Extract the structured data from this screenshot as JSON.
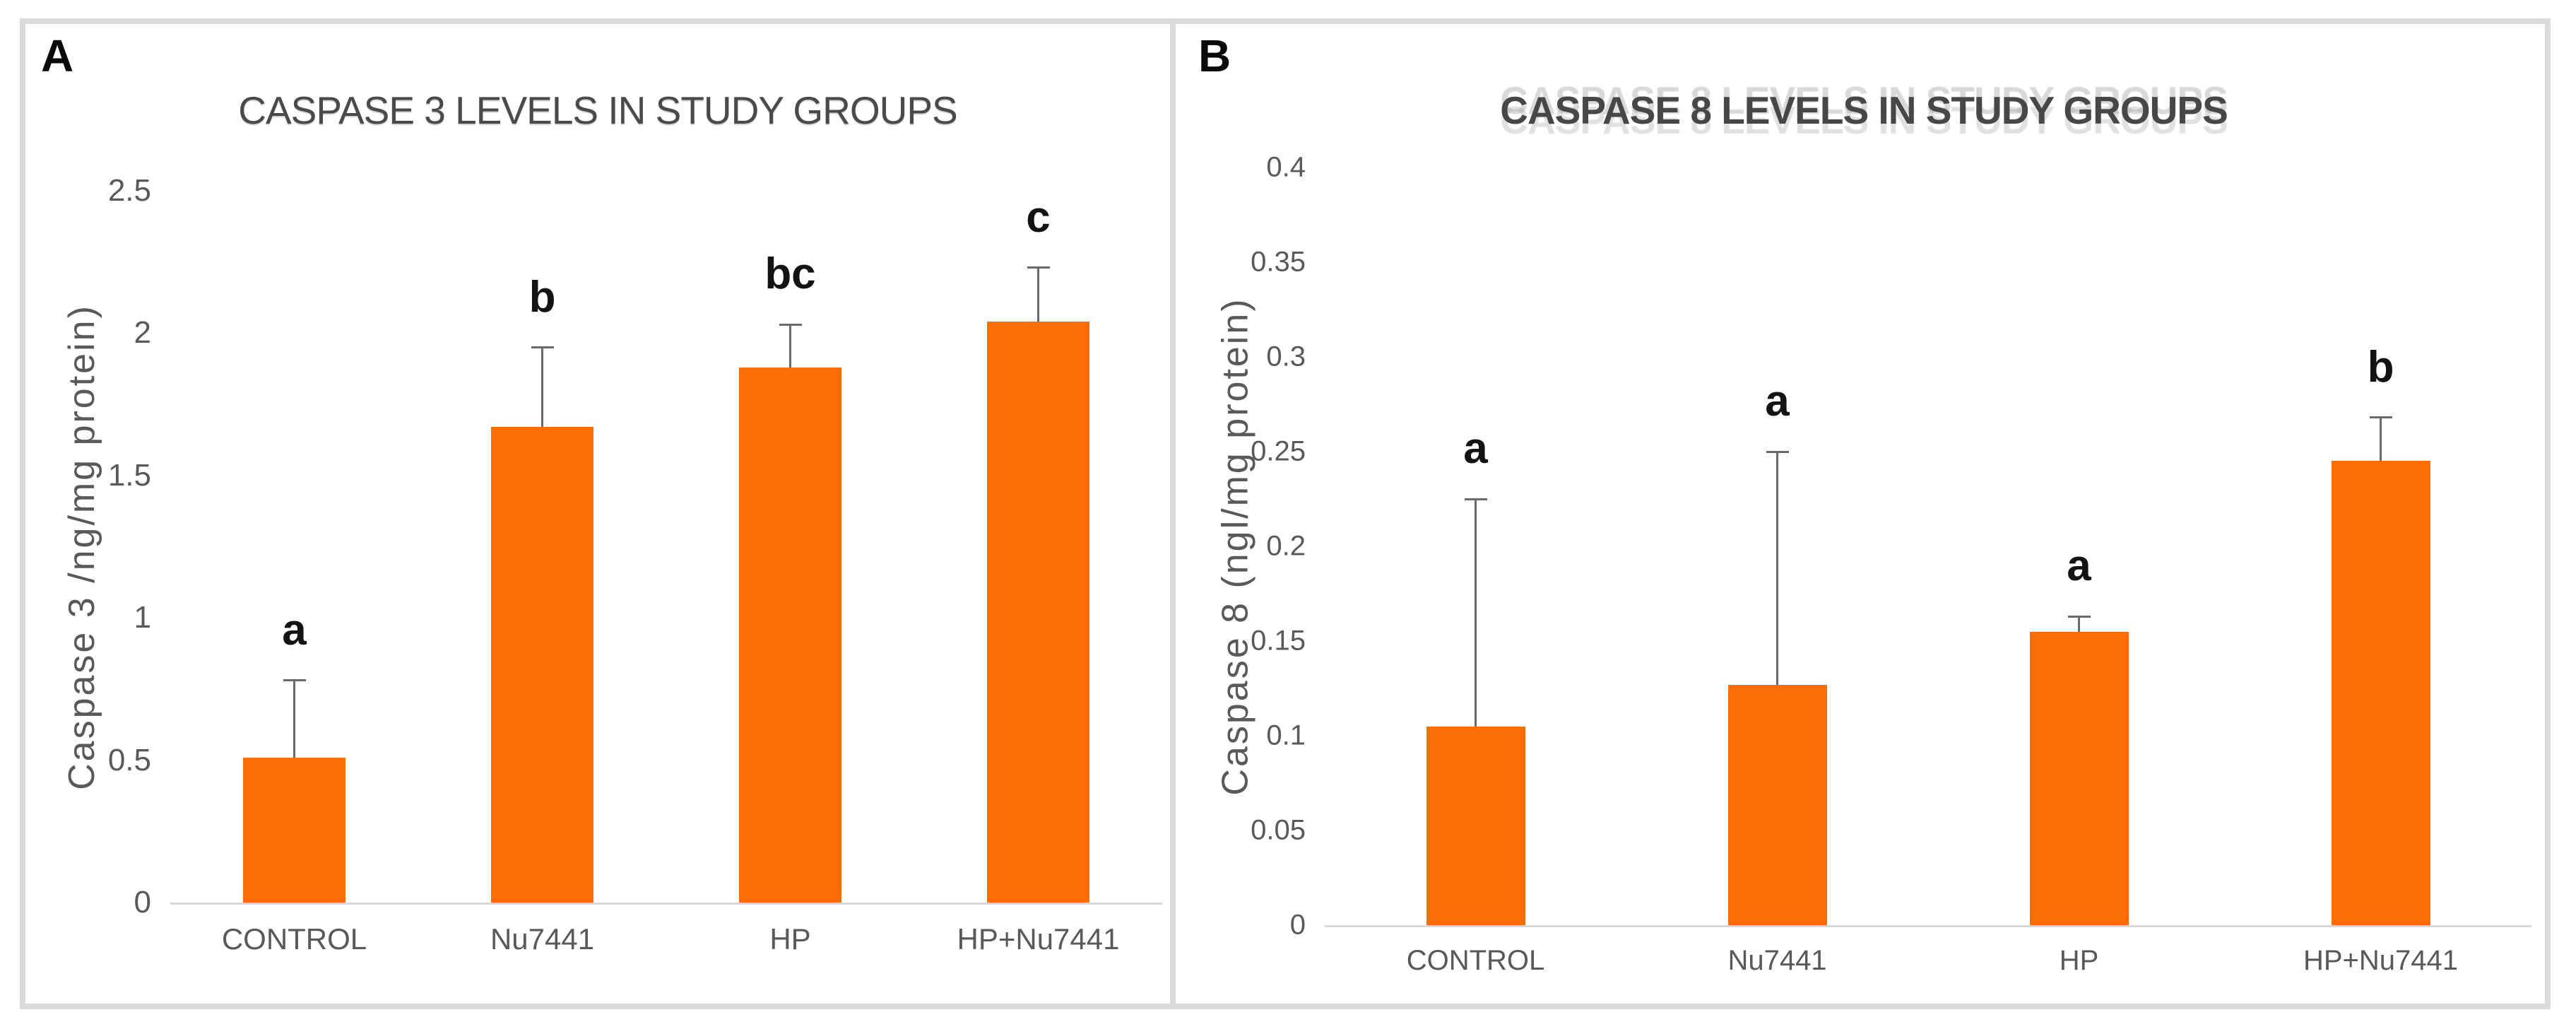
{
  "figure": {
    "panel_a_letter": "A",
    "panel_b_letter": "B",
    "bar_color": "#FA6E05",
    "axis_text_color": "#595959",
    "frame_color": "#DBDBDB"
  },
  "chart_data": [
    {
      "type": "bar",
      "panel": "A",
      "title": "CASPASE 3 LEVELS IN STUDY GROUPS",
      "ylabel": "Caspase 3 /ng/mg protein)",
      "xlabel": "",
      "categories": [
        "CONTROL",
        "Nu7441",
        "HP",
        "HP+Nu7441"
      ],
      "values": [
        0.51,
        1.67,
        1.88,
        2.04
      ],
      "error_plus": [
        0.27,
        0.28,
        0.15,
        0.19
      ],
      "sig_letters": [
        "a",
        "b",
        "bc",
        "c"
      ],
      "ylim": [
        0,
        2.5
      ],
      "ytick_step": 0.5,
      "yticks": [
        0,
        0.5,
        1,
        1.5,
        2,
        2.5
      ],
      "bar_color": "#FA6E05",
      "grid": false,
      "legend": "none"
    },
    {
      "type": "bar",
      "panel": "B",
      "title": "CASPASE 8 LEVELS IN STUDY GROUPS",
      "ylabel": "Caspase 8 (ngl/mg protein)",
      "xlabel": "",
      "categories": [
        "CONTROL",
        "Nu7441",
        "HP",
        "HP+Nu7441"
      ],
      "values": [
        0.105,
        0.127,
        0.155,
        0.245
      ],
      "error_plus": [
        0.12,
        0.123,
        0.008,
        0.023
      ],
      "sig_letters": [
        "a",
        "a",
        "a",
        "b"
      ],
      "ylim": [
        0,
        0.4
      ],
      "ytick_step": 0.05,
      "yticks": [
        0,
        0.05,
        0.1,
        0.15,
        0.2,
        0.25,
        0.3,
        0.35,
        0.4
      ],
      "bar_color": "#FA6E05",
      "grid": false,
      "legend": "none"
    }
  ]
}
